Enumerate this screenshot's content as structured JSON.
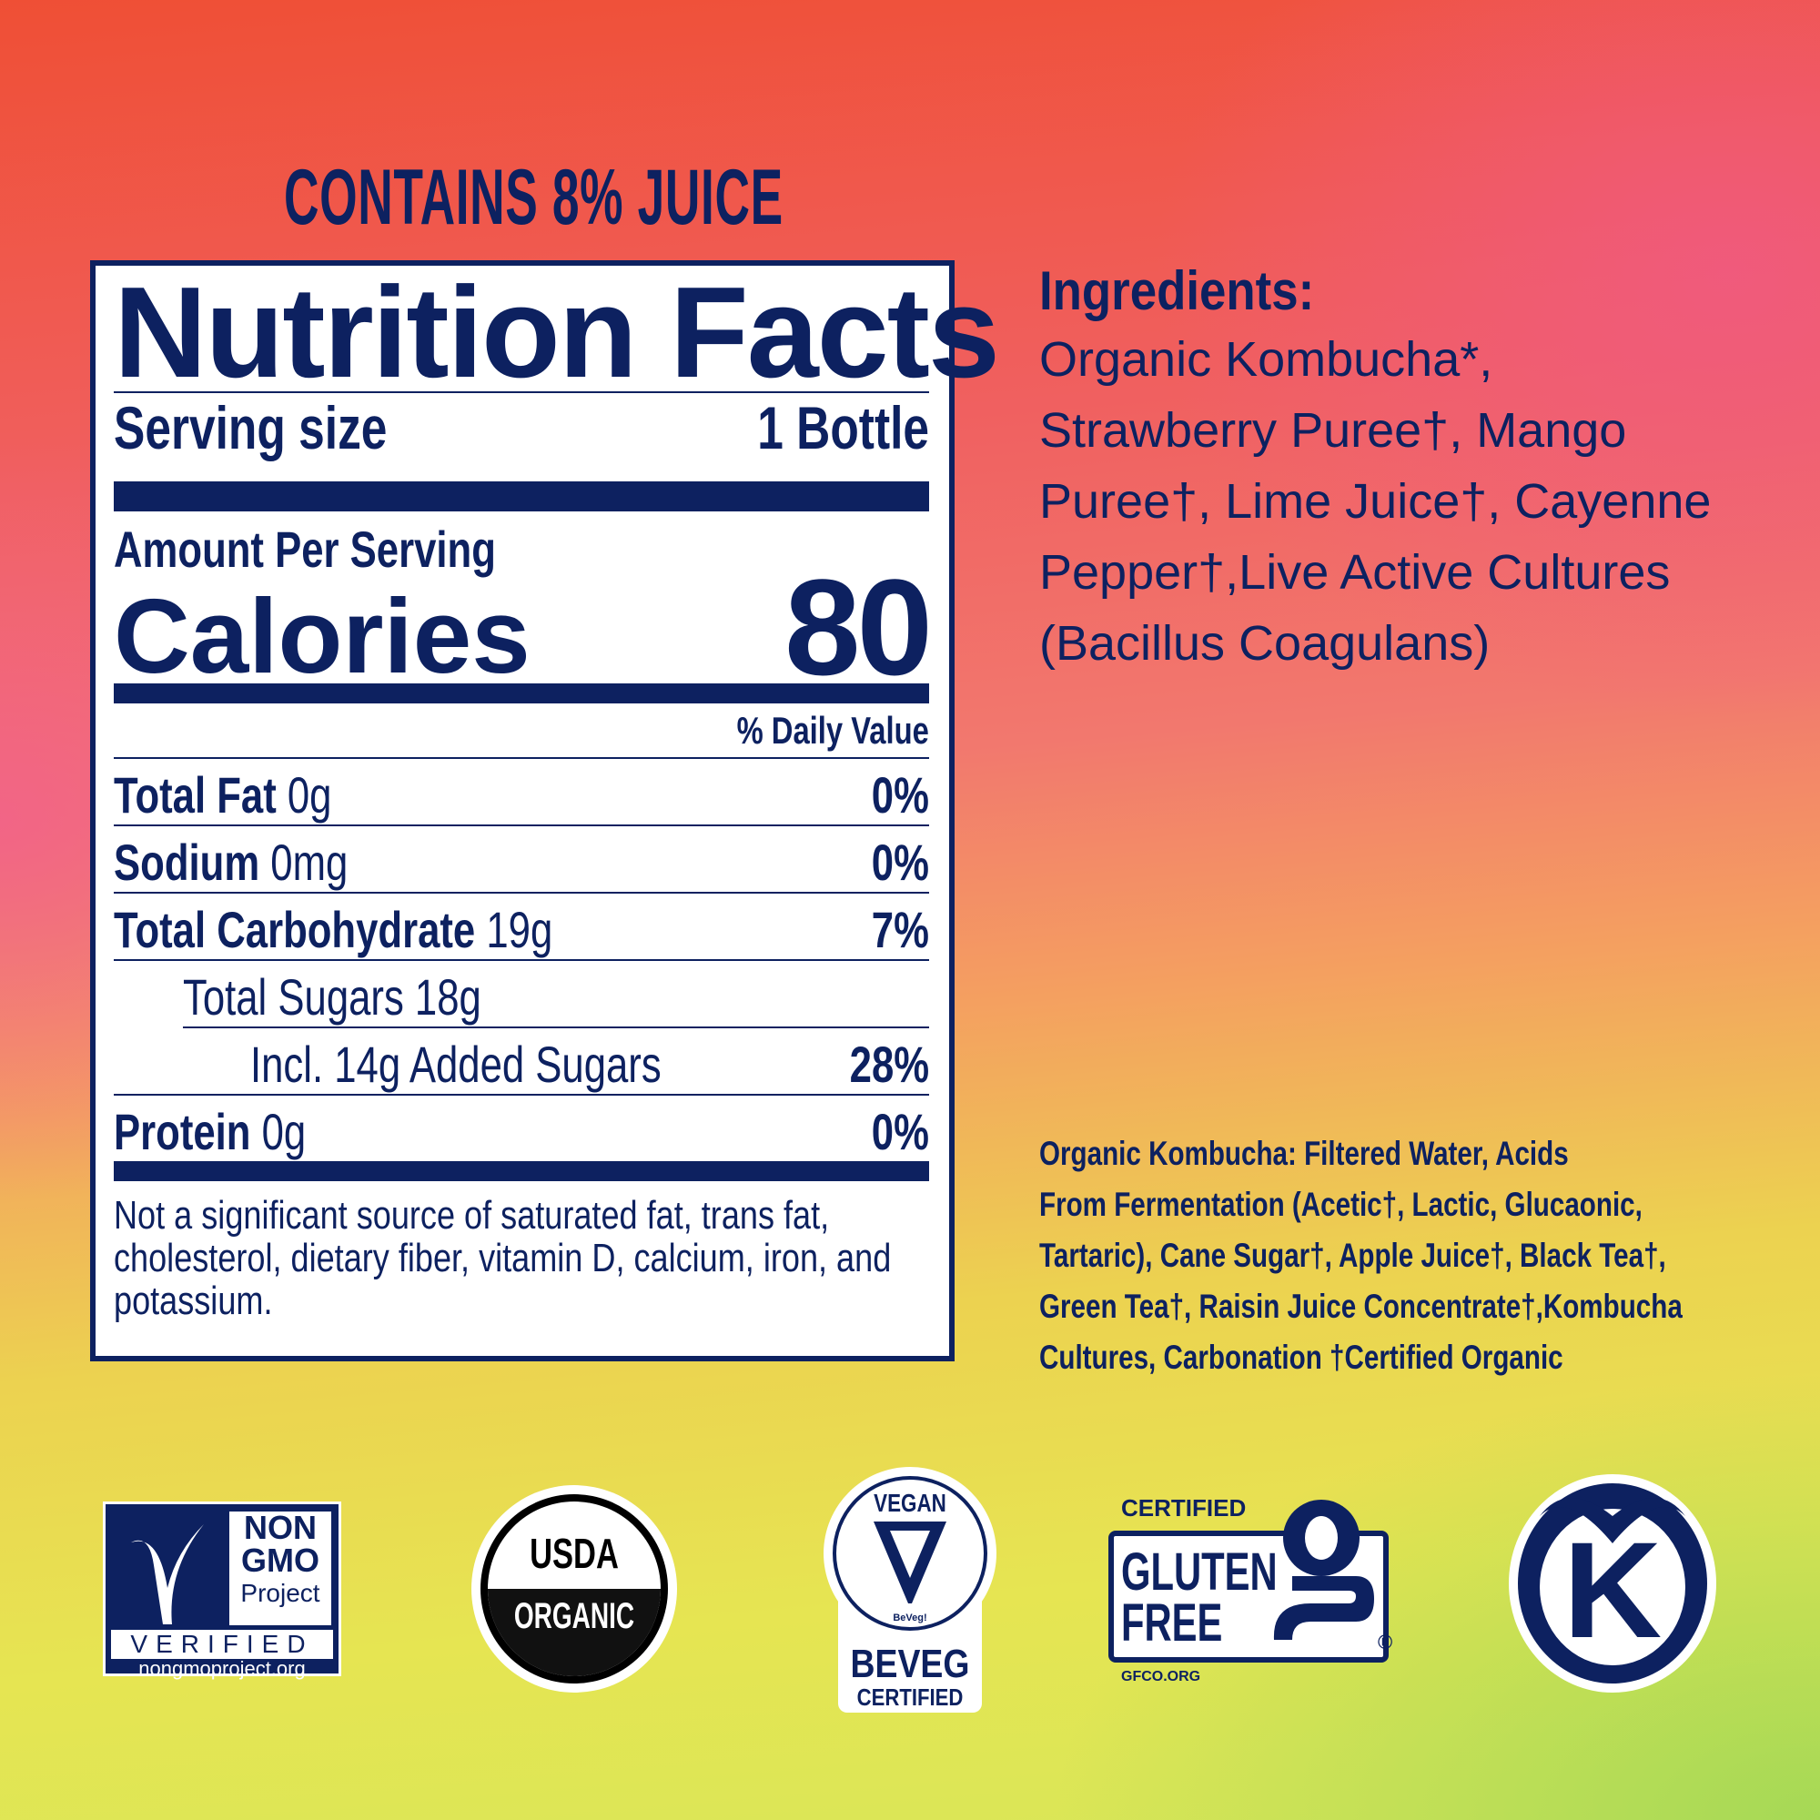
{
  "header": {
    "juice_label": "CONTAINS 8% JUICE"
  },
  "nutrition": {
    "title": "Nutrition Facts",
    "serving_label": "Serving size",
    "serving_value": "1 Bottle",
    "amount_label": "Amount Per Serving",
    "calories_label": "Calories",
    "calories_value": "80",
    "dv_header": "% Daily Value",
    "rows": [
      {
        "name": "Total Fat",
        "amount": "0g",
        "dv": "0%"
      },
      {
        "name": "Sodium",
        "amount": "0mg",
        "dv": "0%"
      },
      {
        "name": "Total Carbohydrate",
        "amount": "19g",
        "dv": "7%"
      },
      {
        "name": "Total Sugars 18g",
        "amount": "",
        "dv": ""
      },
      {
        "name": "Incl. 14g Added Sugars",
        "amount": "",
        "dv": "28%"
      },
      {
        "name": "Protein",
        "amount": "0g",
        "dv": "0%"
      }
    ],
    "footnote": "Not a significant source of saturated fat, trans fat, cholesterol, dietary fiber, vitamin D, calcium, iron, and potassium."
  },
  "ingredients": {
    "title": "Ingredients:",
    "lines": [
      "Organic Kombucha*,",
      "Strawberry Puree†, Mango",
      "Puree†, Lime Juice†, Cayenne",
      "Pepper†,Live Active Cultures",
      "(Bacillus Coagulans)"
    ]
  },
  "kombucha_note": {
    "lines": [
      "Organic Kombucha: Filtered Water, Acids",
      "From Fermentation (Acetic†, Lactic, Glucaonic,",
      "Tartaric), Cane Sugar†, Apple Juice†, Black Tea†,",
      "Green Tea†, Raisin Juice Concentrate†,Kombucha",
      "Cultures, Carbonation †Certified Organic"
    ]
  },
  "logos": {
    "nongmo": {
      "line1": "NON",
      "line2": "GMO",
      "line3": "Project",
      "verified": "VERIFIED",
      "url": "nongmoproject.org"
    },
    "usda": {
      "top": "USDA",
      "bottom": "ORGANIC"
    },
    "beveg": {
      "top": "VEGAN",
      "mark": "BeVeg!",
      "name": "BEVEG",
      "certified": "CERTIFIED"
    },
    "gluten": {
      "certified": "CERTIFIED",
      "line1": "GLUTEN",
      "line2": "FREE",
      "url": "GFCO.ORG",
      "reg": "®"
    },
    "kosher": {
      "letter": "K"
    }
  },
  "colors": {
    "navy": "#0d2160"
  }
}
